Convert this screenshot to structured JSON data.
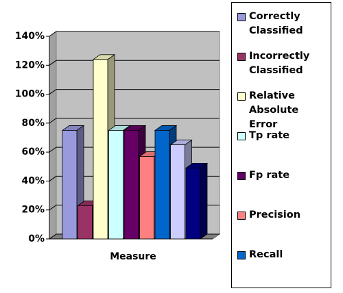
{
  "chart_data": {
    "type": "bar",
    "categories": [
      "Measure"
    ],
    "series": [
      {
        "name": "Correctly Classified",
        "color": "#9999dd",
        "values": [
          75
        ]
      },
      {
        "name": "Incorrectly Classified",
        "color": "#993366",
        "values": [
          23
        ]
      },
      {
        "name": "Relative Absolute Error",
        "color": "#ffffcc",
        "values": [
          124
        ]
      },
      {
        "name": "Tp rate",
        "color": "#ccffff",
        "values": [
          75
        ]
      },
      {
        "name": "Fp rate",
        "color": "#660066",
        "values": [
          75
        ]
      },
      {
        "name": "Precision",
        "color": "#ff8080",
        "values": [
          57
        ]
      },
      {
        "name": "Recall",
        "color": "#0066cc",
        "values": [
          75
        ]
      },
      {
        "name": null,
        "color": "#ccccff",
        "values": [
          65
        ]
      },
      {
        "name": null,
        "color": "#000080",
        "values": [
          49
        ]
      }
    ],
    "ylim": [
      0,
      140
    ],
    "yticks": [
      {
        "value": 0,
        "label": "0%"
      },
      {
        "value": 20,
        "label": "20%"
      },
      {
        "value": 40,
        "label": "40%"
      },
      {
        "value": 60,
        "label": "60%"
      },
      {
        "value": 80,
        "label": "80%"
      },
      {
        "value": 100,
        "label": "100%"
      },
      {
        "value": 120,
        "label": "120%"
      },
      {
        "value": 140,
        "label": "140%"
      }
    ],
    "grid": true
  }
}
